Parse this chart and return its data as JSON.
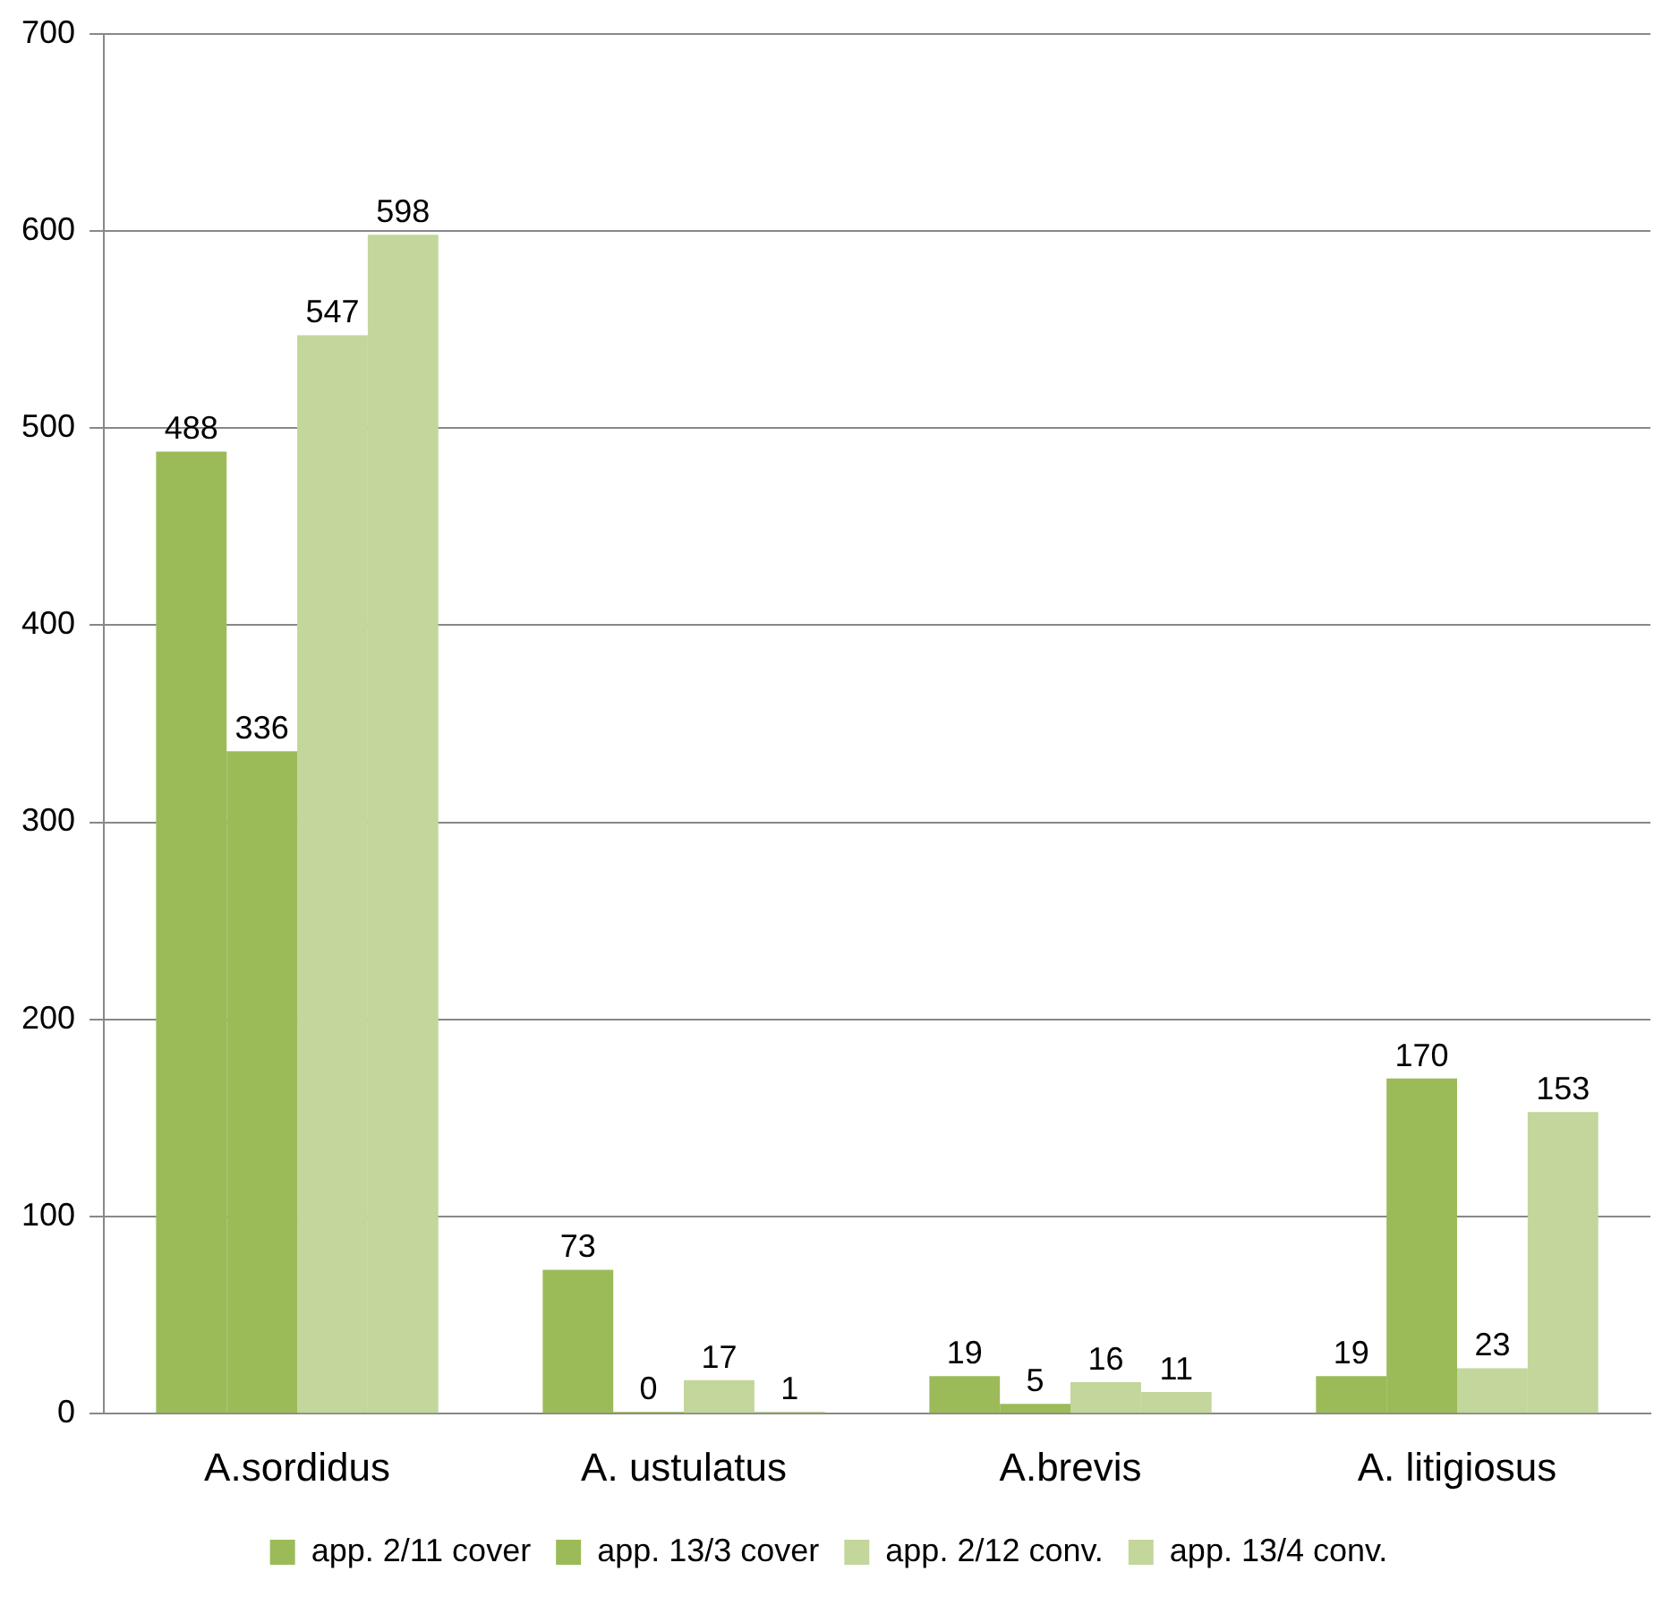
{
  "chart_data": {
    "type": "bar",
    "categories": [
      "A.sordidus",
      "A. ustulatus",
      "A.brevis",
      "A. litigiosus"
    ],
    "series": [
      {
        "name": "app. 2/11 cover",
        "color": "#9bbb59",
        "values": [
          488,
          73,
          19,
          19
        ]
      },
      {
        "name": "app. 13/3 cover",
        "color": "#9bbb59",
        "values": [
          336,
          0,
          5,
          170
        ]
      },
      {
        "name": "app. 2/12 conv.",
        "color": "#c3d69b",
        "values": [
          547,
          17,
          16,
          23
        ]
      },
      {
        "name": "app. 13/4 conv.",
        "color": "#c3d69b",
        "values": [
          598,
          1,
          11,
          153
        ]
      }
    ],
    "ylim": [
      0,
      700
    ],
    "yticks": [
      0,
      100,
      200,
      300,
      400,
      500,
      600,
      700
    ],
    "grid": "y",
    "legend": "bottom",
    "data_labels": true
  }
}
